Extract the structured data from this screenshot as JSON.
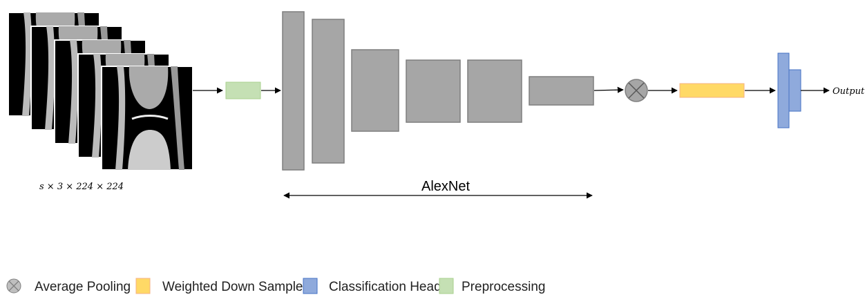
{
  "input_label": "s × 3 × 224 × 224",
  "backbone_label": "AlexNet",
  "output_label": "Output",
  "legend": [
    {
      "label": "Average Pooling"
    },
    {
      "label": "Weighted Down Sample"
    },
    {
      "label": "Classification Head"
    },
    {
      "label": "Preprocessing"
    }
  ]
}
